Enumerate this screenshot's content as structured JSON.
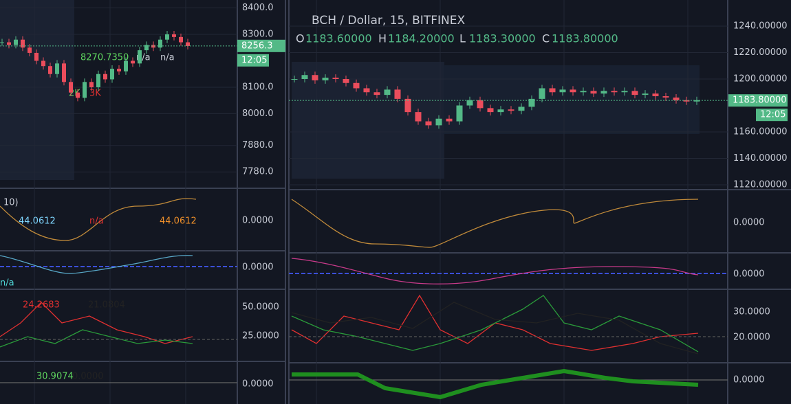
{
  "left_chart": {
    "price_axis": [
      "8400.0",
      "8300.0",
      "8100.0",
      "8000.0",
      "7880.0",
      "7780.0"
    ],
    "last_price": "8256.3",
    "countdown": "12:05",
    "legend_values": [
      "8270.7350",
      "n/a",
      "n/a"
    ],
    "volume_labels": [
      "2K",
      "3K"
    ],
    "osc1_title": "10)",
    "osc1_values": [
      "44.0612",
      "n/a",
      "44.0612"
    ],
    "osc1_axis": "0.0000",
    "osc2_value": "n/a",
    "osc2_axis": "0.0000",
    "osc3_values": [
      "24.2683",
      "21.0804"
    ],
    "osc3_axis": [
      "50.0000",
      "25.0000"
    ],
    "osc4_values": [
      "30.9074",
      "0.0000"
    ],
    "osc4_axis": "0.0000",
    "close_series": [
      8270,
      8260,
      8280,
      8250,
      8230,
      8200,
      8180,
      8150,
      8190,
      8120,
      8080,
      8060,
      8120,
      8100,
      8150,
      8130,
      8170,
      8160,
      8200,
      8190,
      8240,
      8260,
      8250,
      8280,
      8300,
      8290,
      8270,
      8256
    ]
  },
  "right_chart": {
    "symbol": "BCH / Dollar, 15, BITFINEX",
    "ohlc": [
      {
        "key": "O",
        "value": "1183.60000"
      },
      {
        "key": "H",
        "value": "1184.20000"
      },
      {
        "key": "L",
        "value": "1183.30000"
      },
      {
        "key": "C",
        "value": "1183.80000"
      }
    ],
    "price_axis": [
      "1240.00000",
      "1220.00000",
      "1200.00000",
      "1160.00000",
      "1140.00000",
      "1120.00000"
    ],
    "last_price": "1183.80000",
    "countdown": "12:05",
    "osc1_axis": "0.0000",
    "osc2_axis": "0.0000",
    "osc3_axis": [
      "30.0000",
      "20.0000"
    ],
    "osc4_axis": "0.0000",
    "close_series": [
      1200,
      1203,
      1199,
      1201,
      1200,
      1197,
      1193,
      1190,
      1188,
      1192,
      1185,
      1175,
      1168,
      1165,
      1170,
      1168,
      1180,
      1184,
      1178,
      1175,
      1177,
      1176,
      1179,
      1185,
      1193,
      1190,
      1192,
      1190,
      1191,
      1189,
      1191,
      1190,
      1191,
      1188,
      1189,
      1187,
      1186,
      1184,
      1183,
      1184
    ]
  }
}
